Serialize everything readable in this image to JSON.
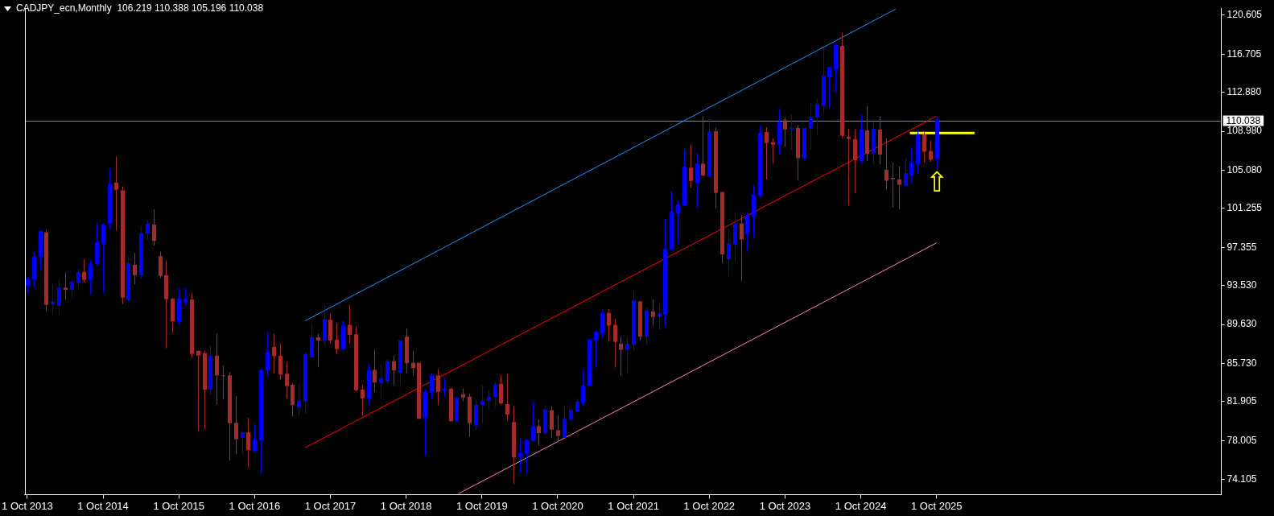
{
  "chart_data": {
    "type": "candlestick",
    "title": "CADJPY_ecn,Monthly  106.219 110.388 105.196 110.038",
    "x": [
      "2013-10",
      "2013-11",
      "2013-12",
      "2014-01",
      "2014-02",
      "2014-03",
      "2014-04",
      "2014-05",
      "2014-06",
      "2014-07",
      "2014-08",
      "2014-09",
      "2014-10",
      "2014-11",
      "2014-12",
      "2015-01",
      "2015-02",
      "2015-03",
      "2015-04",
      "2015-05",
      "2015-06",
      "2015-07",
      "2015-08",
      "2015-09",
      "2015-10",
      "2015-11",
      "2015-12",
      "2016-01",
      "2016-02",
      "2016-03",
      "2016-04",
      "2016-05",
      "2016-06",
      "2016-07",
      "2016-08",
      "2016-09",
      "2016-10",
      "2016-11",
      "2016-12",
      "2017-01",
      "2017-02",
      "2017-03",
      "2017-04",
      "2017-05",
      "2017-06",
      "2017-07",
      "2017-08",
      "2017-09",
      "2017-10",
      "2017-11",
      "2017-12",
      "2018-01",
      "2018-02",
      "2018-03",
      "2018-04",
      "2018-05",
      "2018-06",
      "2018-07",
      "2018-08",
      "2018-09",
      "2018-10",
      "2018-11",
      "2018-12",
      "2019-01",
      "2019-02",
      "2019-03",
      "2019-04",
      "2019-05",
      "2019-06",
      "2019-07",
      "2019-08",
      "2019-09",
      "2019-10",
      "2019-11",
      "2019-12",
      "2020-01",
      "2020-02",
      "2020-03",
      "2020-04",
      "2020-05",
      "2020-06",
      "2020-07",
      "2020-08",
      "2020-09",
      "2020-10",
      "2020-11",
      "2020-12",
      "2021-01",
      "2021-02",
      "2021-03",
      "2021-04",
      "2021-05",
      "2021-06",
      "2021-07",
      "2021-08",
      "2021-09",
      "2021-10",
      "2021-11",
      "2021-12",
      "2022-01",
      "2022-02",
      "2022-03",
      "2022-04",
      "2022-05",
      "2022-06",
      "2022-07",
      "2022-08",
      "2022-09",
      "2022-10",
      "2022-11",
      "2022-12",
      "2023-01",
      "2023-02",
      "2023-03",
      "2023-04",
      "2023-05",
      "2023-06",
      "2023-07",
      "2023-08",
      "2023-09",
      "2023-10",
      "2023-11",
      "2023-12",
      "2024-01",
      "2024-02",
      "2024-03",
      "2024-04",
      "2024-05",
      "2024-06",
      "2024-07",
      "2024-08",
      "2024-09",
      "2024-10",
      "2024-11",
      "2024-12",
      "2025-01",
      "2025-02",
      "2025-03",
      "2025-04",
      "2025-05",
      "2025-06",
      "2025-07",
      "2025-08",
      "2025-09",
      "2025-10"
    ],
    "ohlc": [
      [
        93.5,
        94.37,
        92.79,
        94.19
      ],
      [
        94.11,
        96.8,
        93.32,
        96.4
      ],
      [
        96.43,
        99.07,
        95.08,
        98.99
      ],
      [
        98.86,
        99.07,
        90.94,
        91.6
      ],
      [
        91.68,
        93.71,
        90.73,
        91.89
      ],
      [
        91.52,
        94.03,
        90.55,
        93.32
      ],
      [
        93.32,
        94.82,
        92.13,
        93.11
      ],
      [
        93.11,
        94.03,
        92.4,
        93.9
      ],
      [
        93.82,
        95.11,
        93.32,
        94.9
      ],
      [
        94.9,
        96.16,
        93.82,
        94.11
      ],
      [
        94.11,
        96.09,
        92.66,
        95.64
      ],
      [
        95.69,
        99.78,
        95.56,
        97.85
      ],
      [
        97.75,
        99.78,
        92.79,
        99.64
      ],
      [
        99.75,
        105.26,
        99.2,
        103.68
      ],
      [
        103.84,
        106.45,
        99.04,
        103.13
      ],
      [
        103.05,
        103.44,
        91.68,
        92.31
      ],
      [
        92.05,
        96.4,
        91.97,
        95.77
      ],
      [
        95.61,
        96.8,
        93.66,
        94.58
      ],
      [
        94.53,
        99.46,
        94.19,
        98.78
      ],
      [
        98.7,
        100.04,
        98.17,
        99.73
      ],
      [
        99.64,
        101.15,
        97.53,
        98.01
      ],
      [
        96.48,
        96.93,
        94.29,
        94.5
      ],
      [
        94.58,
        96.01,
        87.25,
        92.16
      ],
      [
        92.21,
        92.26,
        88.83,
        89.94
      ],
      [
        89.94,
        93.24,
        89.62,
        92.21
      ],
      [
        91.92,
        93.24,
        91.53,
        92.13
      ],
      [
        92.13,
        92.77,
        86.28,
        86.67
      ],
      [
        86.99,
        87.0,
        78.89,
        86.51
      ],
      [
        86.75,
        86.99,
        79.16,
        83.11
      ],
      [
        83.11,
        87.39,
        82.64,
        86.51
      ],
      [
        86.51,
        88.73,
        81.64,
        84.54
      ],
      [
        84.54,
        85.49,
        82.16,
        84.5
      ],
      [
        84.54,
        84.85,
        76.0,
        79.74
      ],
      [
        79.79,
        82.48,
        76.63,
        78.16
      ],
      [
        78.29,
        78.95,
        76.68,
        78.84
      ],
      [
        78.84,
        80.27,
        75.31,
        77.05
      ],
      [
        76.97,
        79.63,
        76.9,
        78.1
      ],
      [
        78.08,
        85.22,
        74.73,
        85.07
      ],
      [
        85.04,
        88.86,
        84.49,
        86.81
      ],
      [
        87.39,
        88.68,
        84.75,
        86.46
      ],
      [
        86.51,
        87.7,
        84.09,
        84.64
      ],
      [
        84.7,
        85.88,
        82.19,
        83.46
      ],
      [
        83.59,
        83.75,
        80.45,
        81.56
      ],
      [
        81.32,
        83.67,
        80.53,
        82.0
      ],
      [
        81.93,
        86.81,
        80.79,
        86.67
      ],
      [
        86.33,
        89.68,
        86.3,
        88.36
      ],
      [
        88.36,
        88.68,
        85.35,
        88.02
      ],
      [
        88.04,
        91.58,
        87.49,
        90.15
      ],
      [
        90.1,
        90.71,
        87.73,
        88.04
      ],
      [
        88.1,
        89.76,
        86.67,
        87.17
      ],
      [
        87.15,
        89.97,
        87.07,
        89.52
      ],
      [
        89.6,
        91.55,
        87.73,
        88.6
      ],
      [
        88.65,
        89.44,
        82.9,
        83.06
      ],
      [
        83.11,
        83.59,
        80.45,
        82.24
      ],
      [
        82.19,
        85.72,
        81.56,
        85.09
      ],
      [
        85.09,
        87.07,
        82.88,
        83.82
      ],
      [
        83.82,
        85.57,
        82.11,
        84.25
      ],
      [
        83.93,
        86.12,
        83.69,
        85.96
      ],
      [
        85.96,
        86.51,
        83.54,
        85.04
      ],
      [
        84.8,
        88.04,
        83.69,
        88.04
      ],
      [
        88.41,
        89.2,
        84.75,
        85.75
      ],
      [
        85.8,
        86.99,
        84.48,
        85.27
      ],
      [
        85.8,
        85.8,
        80.19,
        80.19
      ],
      [
        80.27,
        83.11,
        76.49,
        82.88
      ],
      [
        82.82,
        84.75,
        82.19,
        84.54
      ],
      [
        84.54,
        85.17,
        81.53,
        82.88
      ],
      [
        83.03,
        84.3,
        82.43,
        83.19
      ],
      [
        83.19,
        83.35,
        79.95,
        79.95
      ],
      [
        79.95,
        82.4,
        79.87,
        82.32
      ],
      [
        82.64,
        83.19,
        81.92,
        82.32
      ],
      [
        82.4,
        82.72,
        78.39,
        79.74
      ],
      [
        79.5,
        82.09,
        79.1,
        81.58
      ],
      [
        81.56,
        83.51,
        79.74,
        82.0
      ],
      [
        82.0,
        83.03,
        81.13,
        82.4
      ],
      [
        82.35,
        83.88,
        81.4,
        83.61
      ],
      [
        83.69,
        84.56,
        81.61,
        81.74
      ],
      [
        81.66,
        84.69,
        80.05,
        80.61
      ],
      [
        79.87,
        81.48,
        73.67,
        76.31
      ],
      [
        76.34,
        78.16,
        74.81,
        76.78
      ],
      [
        76.7,
        78.16,
        74.67,
        78.1
      ],
      [
        77.97,
        81.85,
        77.94,
        79.45
      ],
      [
        79.45,
        80.13,
        77.49,
        78.76
      ],
      [
        78.76,
        81.53,
        78.6,
        81.13
      ],
      [
        81.06,
        81.45,
        78.26,
        79.1
      ],
      [
        79.05,
        80.58,
        77.84,
        78.47
      ],
      [
        78.29,
        81.37,
        78.29,
        80.19
      ],
      [
        80.13,
        81.4,
        80.05,
        81.06
      ],
      [
        80.92,
        82.19,
        80.92,
        81.93
      ],
      [
        81.79,
        85.09,
        81.48,
        83.51
      ],
      [
        83.51,
        88.18,
        83.51,
        88.1
      ],
      [
        88.04,
        89.02,
        85.33,
        88.89
      ],
      [
        88.73,
        91.13,
        88.31,
        90.79
      ],
      [
        90.79,
        91.18,
        87.91,
        89.52
      ],
      [
        89.6,
        90.18,
        85.33,
        87.89
      ],
      [
        87.7,
        88.41,
        84.54,
        87.1
      ],
      [
        87.1,
        88.26,
        84.77,
        87.7
      ],
      [
        87.6,
        93.0,
        87.07,
        92.05
      ],
      [
        91.95,
        92.0,
        88.04,
        88.41
      ],
      [
        88.41,
        91.29,
        87.65,
        91.02
      ],
      [
        90.94,
        92.13,
        89.49,
        90.39
      ],
      [
        90.42,
        91.66,
        89.15,
        90.73
      ],
      [
        90.63,
        100.18,
        89.49,
        97.2
      ],
      [
        97.14,
        102.94,
        97.0,
        100.91
      ],
      [
        100.78,
        102.02,
        97.67,
        101.62
      ],
      [
        101.57,
        107.16,
        101.5,
        105.42
      ],
      [
        105.34,
        107.64,
        103.34,
        104.0
      ],
      [
        103.76,
        106.77,
        101.31,
        105.74
      ],
      [
        105.74,
        110.48,
        104.47,
        104.55
      ],
      [
        104.5,
        110.33,
        104.47,
        108.98
      ],
      [
        108.98,
        109.33,
        101.23,
        102.81
      ],
      [
        102.89,
        102.89,
        95.82,
        96.64
      ],
      [
        96.17,
        99.12,
        94.5,
        97.75
      ],
      [
        97.59,
        100.83,
        95.95,
        99.75
      ],
      [
        99.75,
        100.6,
        93.98,
        98.14
      ],
      [
        98.7,
        100.83,
        96.96,
        100.54
      ],
      [
        100.46,
        103.6,
        98.33,
        102.65
      ],
      [
        102.49,
        109.54,
        102.36,
        108.82
      ],
      [
        108.9,
        109.38,
        104.16,
        107.79
      ],
      [
        107.87,
        108.27,
        105.74,
        107.64
      ],
      [
        107.66,
        111.2,
        106.61,
        109.93
      ],
      [
        110.09,
        110.33,
        107.4,
        109.17
      ],
      [
        109.17,
        110.64,
        107.16,
        109.3
      ],
      [
        109.3,
        109.61,
        104.08,
        106.29
      ],
      [
        106.24,
        109.35,
        106.16,
        109.3
      ],
      [
        109.27,
        111.8,
        107.16,
        110.41
      ],
      [
        110.35,
        112.3,
        108.61,
        111.75
      ],
      [
        111.51,
        117.31,
        110.8,
        114.52
      ],
      [
        114.36,
        115.47,
        111.33,
        115.39
      ],
      [
        115.15,
        117.76,
        112.88,
        117.6
      ],
      [
        117.53,
        118.87,
        108.3,
        108.53
      ],
      [
        108.43,
        109.19,
        101.57,
        108.22
      ],
      [
        108.19,
        109.14,
        102.76,
        106.08
      ],
      [
        106.0,
        110.7,
        105.79,
        109.14
      ],
      [
        109.06,
        111.51,
        106.0,
        106.71
      ],
      [
        106.77,
        109.93,
        105.66,
        109.22
      ],
      [
        109.14,
        110.48,
        105.66,
        106.64
      ],
      [
        105.11,
        108.27,
        103.16,
        104.03
      ],
      [
        104.31,
        105.85,
        101.36,
        104.18
      ],
      [
        104.16,
        105.45,
        101.18,
        103.63
      ],
      [
        103.55,
        106.21,
        103.5,
        104.79
      ],
      [
        104.55,
        107.35,
        103.79,
        105.82
      ],
      [
        105.66,
        108.9,
        104.79,
        108.69
      ],
      [
        108.69,
        108.98,
        105.84,
        106.92
      ],
      [
        107.0,
        108.03,
        105.92,
        106.13
      ],
      [
        106.219,
        110.388,
        105.196,
        110.038
      ]
    ],
    "colors": [
      "#0000ff",
      "#0000ff",
      "#0000ff",
      "#a52a2a",
      "#0000ff",
      "#0000ff",
      "#a52a2a",
      "#0000ff",
      "#0000ff",
      "#a52a2a",
      "#0000ff",
      "#0000ff",
      "#0000ff",
      "#0000ff",
      "#a52a2a",
      "#a52a2a",
      "#0000ff",
      "#a52a2a",
      "#0000ff",
      "#0000ff",
      "#a52a2a",
      "#a52a2a",
      "#a52a2a",
      "#a52a2a",
      "#0000ff",
      "#0000ff",
      "#a52a2a",
      "#a52a2a",
      "#a52a2a",
      "#0000ff",
      "#a52a2a",
      "#a52a2a",
      "#a52a2a",
      "#a52a2a",
      "#0000ff",
      "#a52a2a",
      "#0000ff",
      "#0000ff",
      "#0000ff",
      "#a52a2a",
      "#a52a2a",
      "#a52a2a",
      "#a52a2a",
      "#0000ff",
      "#0000ff",
      "#0000ff",
      "#a52a2a",
      "#0000ff",
      "#a52a2a",
      "#a52a2a",
      "#0000ff",
      "#a52a2a",
      "#a52a2a",
      "#a52a2a",
      "#0000ff",
      "#a52a2a",
      "#0000ff",
      "#0000ff",
      "#a52a2a",
      "#0000ff",
      "#a52a2a",
      "#a52a2a",
      "#a52a2a",
      "#0000ff",
      "#0000ff",
      "#a52a2a",
      "#0000ff",
      "#a52a2a",
      "#0000ff",
      "#a52a2a",
      "#a52a2a",
      "#0000ff",
      "#0000ff",
      "#0000ff",
      "#0000ff",
      "#a52a2a",
      "#a52a2a",
      "#a52a2a",
      "#0000ff",
      "#0000ff",
      "#0000ff",
      "#a52a2a",
      "#0000ff",
      "#a52a2a",
      "#a52a2a",
      "#0000ff",
      "#0000ff",
      "#0000ff",
      "#0000ff",
      "#0000ff",
      "#0000ff",
      "#0000ff",
      "#a52a2a",
      "#a52a2a",
      "#a52a2a",
      "#0000ff",
      "#0000ff",
      "#a52a2a",
      "#0000ff",
      "#a52a2a",
      "#0000ff",
      "#0000ff",
      "#0000ff",
      "#0000ff",
      "#0000ff",
      "#a52a2a",
      "#0000ff",
      "#a52a2a",
      "#0000ff",
      "#a52a2a",
      "#a52a2a",
      "#0000ff",
      "#0000ff",
      "#a52a2a",
      "#0000ff",
      "#0000ff",
      "#0000ff",
      "#a52a2a",
      "#a52a2a",
      "#0000ff",
      "#a52a2a",
      "#0000ff",
      "#a52a2a",
      "#0000ff",
      "#0000ff",
      "#0000ff",
      "#0000ff",
      "#0000ff",
      "#0000ff",
      "#a52a2a",
      "#a52a2a",
      "#a52a2a",
      "#0000ff",
      "#a52a2a",
      "#0000ff",
      "#a52a2a",
      "#a52a2a",
      "#a52a2a",
      "#a52a2a",
      "#0000ff",
      "#0000ff",
      "#0000ff",
      "#a52a2a",
      "#a52a2a",
      "#0000ff"
    ],
    "series": [
      {
        "type": "line",
        "x": [
          "2017-06",
          "2025-03-16"
        ],
        "values": [
          90.0,
          121.2
        ],
        "color": "#1e90ff"
      },
      {
        "type": "line",
        "x": [
          "2017-06",
          "2025-10"
        ],
        "values": [
          77.3,
          110.5
        ],
        "color": "#ff0000"
      },
      {
        "type": "line",
        "x": [
          "2019-06-10",
          "2025-10"
        ],
        "values": [
          72.7,
          97.8
        ],
        "color": "#ff80c0"
      },
      {
        "type": "line",
        "x": [
          "2025-05-25",
          "2026-04"
        ],
        "values": [
          108.8,
          108.8
        ],
        "color": "#ffff00"
      }
    ],
    "xlim": [
      "2013-09-19",
      "2029-07-04"
    ],
    "xticks": [
      {
        "value": "2013-10",
        "label": "1 Oct 2013"
      },
      {
        "value": "2014-10",
        "label": "1 Oct 2014"
      },
      {
        "value": "2015-10",
        "label": "1 Oct 2015"
      },
      {
        "value": "2016-10",
        "label": "1 Oct 2016"
      },
      {
        "value": "2017-10",
        "label": "1 Oct 2017"
      },
      {
        "value": "2018-10",
        "label": "1 Oct 2018"
      },
      {
        "value": "2019-10",
        "label": "1 Oct 2019"
      },
      {
        "value": "2020-10",
        "label": "1 Oct 2020"
      },
      {
        "value": "2021-10",
        "label": "1 Oct 2021"
      },
      {
        "value": "2022-10",
        "label": "1 Oct 2022"
      },
      {
        "value": "2023-10",
        "label": "1 Oct 2023"
      },
      {
        "value": "2024-10",
        "label": "1 Oct 2024"
      },
      {
        "value": "2025-10",
        "label": "1 Oct 2025"
      }
    ],
    "ylim": [
      72.6,
      121.3
    ],
    "yticks": [
      120.605,
      116.705,
      {
        "value": 112.88,
        "label": "112.880"
      },
      {
        "value": 108.98,
        "label": "108.980"
      },
      {
        "value": 105.08,
        "label": "105.080"
      },
      101.255,
      97.355,
      {
        "value": 93.53,
        "label": "93.530"
      },
      {
        "value": 89.63,
        "label": "89.630"
      },
      {
        "value": 85.73,
        "label": "85.730"
      },
      81.905,
      78.005,
      74.105
    ],
    "ref_lines": [
      {
        "axis": "y",
        "value": 110.038,
        "label": "110.038",
        "color": "#778899"
      }
    ],
    "annotations": [
      "⇧"
    ]
  }
}
